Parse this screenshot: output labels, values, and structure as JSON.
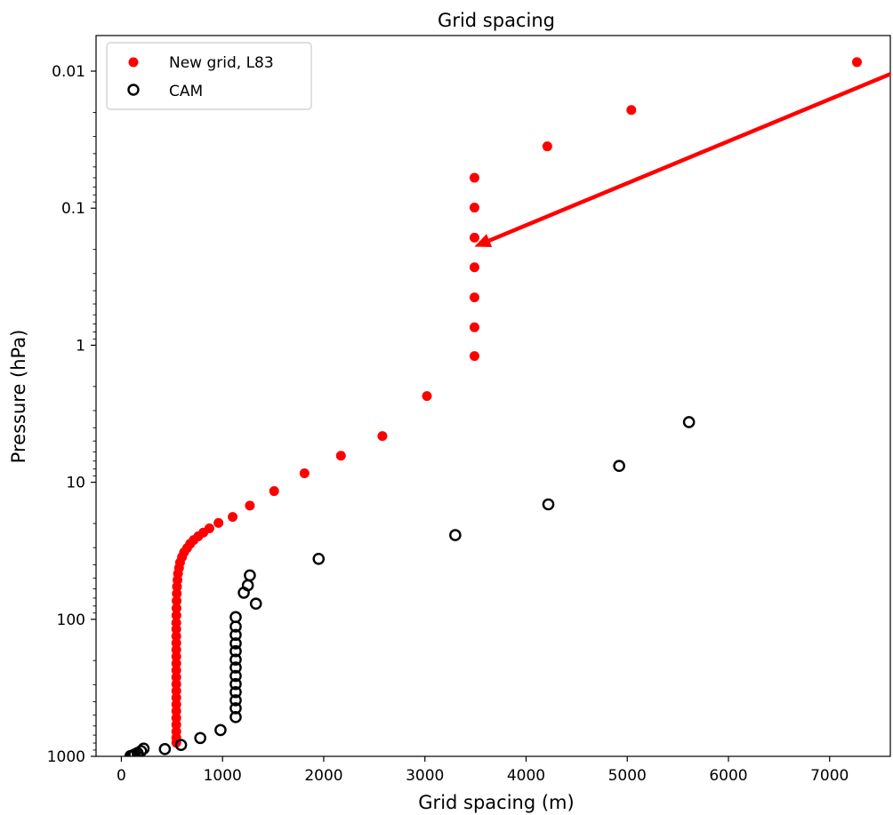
{
  "chart_data": {
    "type": "scatter",
    "title": "Grid spacing",
    "xlabel": "Grid spacing (m)",
    "ylabel": "Pressure (hPa)",
    "xlim": [
      -250,
      7600
    ],
    "ylim": [
      1000,
      0.0055
    ],
    "yscale": "log",
    "y_inverted": true,
    "xticks": [
      0,
      1000,
      2000,
      3000,
      4000,
      5000,
      6000,
      7000
    ],
    "xtick_labels": [
      "0",
      "1000",
      "2000",
      "3000",
      "4000",
      "5000",
      "6000",
      "7000"
    ],
    "yticks": [
      0.01,
      0.1,
      1,
      10,
      100,
      1000
    ],
    "ytick_labels": [
      "0.01",
      "0.1",
      "1",
      "10",
      "100",
      "1000"
    ],
    "grid": false,
    "legend_position": "upper-left",
    "series": [
      {
        "name": "New grid, L83",
        "marker": "filled-circle",
        "color": "#ff0000",
        "points": [
          [
            7270,
            0.0086
          ],
          [
            5040,
            0.0192
          ],
          [
            4210,
            0.0354
          ],
          [
            3490,
            0.06
          ],
          [
            3490,
            0.099
          ],
          [
            3490,
            0.164
          ],
          [
            3490,
            0.27
          ],
          [
            3490,
            0.448
          ],
          [
            3490,
            0.74
          ],
          [
            3490,
            1.2
          ],
          [
            3020,
            2.35
          ],
          [
            2580,
            4.6
          ],
          [
            2170,
            6.4
          ],
          [
            1810,
            8.6
          ],
          [
            1510,
            11.6
          ],
          [
            1270,
            14.8
          ],
          [
            1100,
            17.9
          ],
          [
            960,
            19.8
          ],
          [
            870,
            21.7
          ],
          [
            810,
            23.3
          ],
          [
            760,
            24.8
          ],
          [
            715,
            26.4
          ],
          [
            680,
            28.1
          ],
          [
            650,
            30.2
          ],
          [
            620,
            32.4
          ],
          [
            600,
            35.1
          ],
          [
            580,
            38.5
          ],
          [
            570,
            42.2
          ],
          [
            560,
            46.5
          ],
          [
            555,
            51.7
          ],
          [
            550,
            57.8
          ],
          [
            548,
            64.9
          ],
          [
            546,
            73.4
          ],
          [
            545,
            83.0
          ],
          [
            544,
            93.6
          ],
          [
            543,
            106
          ],
          [
            543,
            118
          ],
          [
            543,
            133
          ],
          [
            543,
            149
          ],
          [
            543,
            167
          ],
          [
            543,
            187
          ],
          [
            543,
            210
          ],
          [
            543,
            236
          ],
          [
            543,
            265
          ],
          [
            543,
            297
          ],
          [
            543,
            333
          ],
          [
            543,
            373
          ],
          [
            543,
            418
          ],
          [
            543,
            468
          ],
          [
            543,
            525
          ],
          [
            543,
            588
          ],
          [
            543,
            660
          ],
          [
            543,
            730
          ],
          [
            543,
            795
          ]
        ]
      },
      {
        "name": "CAM",
        "marker": "open-circle",
        "color": "#000000",
        "points": [
          [
            5610,
            3.64
          ],
          [
            4920,
            7.6
          ],
          [
            4220,
            14.5
          ],
          [
            3300,
            24.3
          ],
          [
            1950,
            36.2
          ],
          [
            1270,
            47.8
          ],
          [
            1250,
            56.5
          ],
          [
            1210,
            64.0
          ],
          [
            1330,
            76.9
          ],
          [
            1130,
            96.4
          ],
          [
            1130,
            113
          ],
          [
            1130,
            130
          ],
          [
            1130,
            150
          ],
          [
            1130,
            171
          ],
          [
            1130,
            197
          ],
          [
            1130,
            225
          ],
          [
            1130,
            259
          ],
          [
            1130,
            297
          ],
          [
            1130,
            340
          ],
          [
            1130,
            390
          ],
          [
            1130,
            446
          ],
          [
            1130,
            517
          ],
          [
            980,
            643
          ],
          [
            780,
            735
          ],
          [
            590,
            826
          ],
          [
            430,
            885
          ],
          [
            220,
            878
          ],
          [
            195,
            915
          ],
          [
            160,
            945
          ],
          [
            130,
            970
          ],
          [
            110,
            985
          ],
          [
            90,
            995
          ]
        ]
      }
    ],
    "annotation": {
      "type": "arrow",
      "color": "#ff0000",
      "from": [
        7600,
        0.0105
      ],
      "to": [
        3490,
        0.191
      ]
    }
  }
}
